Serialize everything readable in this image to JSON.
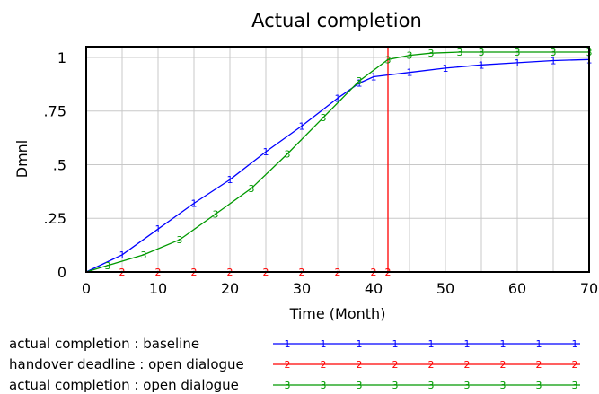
{
  "chart_data": {
    "type": "line",
    "title": "Actual completion",
    "xlabel": "Time (Month)",
    "ylabel": "Dmnl",
    "xlim": [
      0,
      70
    ],
    "ylim": [
      0,
      1.05
    ],
    "xticks": [
      0,
      10,
      20,
      30,
      40,
      50,
      60,
      70
    ],
    "xtick_labels": [
      "0",
      "10",
      "20",
      "30",
      "40",
      "50",
      "60",
      "70"
    ],
    "yticks": [
      0,
      0.25,
      0.5,
      0.75,
      1
    ],
    "ytick_labels": [
      "0",
      ".25",
      ".5",
      ".75",
      "1"
    ],
    "grid": true,
    "legend_position": "bottom-left",
    "series": [
      {
        "name": "actual completion : baseline",
        "marker": "1",
        "color": "#0000ff",
        "x": [
          0,
          5,
          10,
          15,
          20,
          25,
          30,
          35,
          38,
          40,
          45,
          50,
          55,
          60,
          65,
          70
        ],
        "y": [
          0,
          0.08,
          0.2,
          0.32,
          0.43,
          0.56,
          0.68,
          0.81,
          0.88,
          0.91,
          0.93,
          0.95,
          0.965,
          0.975,
          0.985,
          0.99
        ]
      },
      {
        "name": "handover deadline : open dialogue",
        "marker": "2",
        "color": "#ff0000",
        "x": [
          0,
          5,
          10,
          15,
          20,
          25,
          30,
          35,
          40,
          42
        ],
        "y": [
          0,
          0,
          0,
          0,
          0,
          0,
          0,
          0,
          0,
          0
        ],
        "vertical_line_x": 42
      },
      {
        "name": "actual completion : open dialogue",
        "marker": "3",
        "color": "#009900",
        "x": [
          0,
          3,
          8,
          13,
          18,
          23,
          28,
          33,
          38,
          42,
          45,
          48,
          52,
          55,
          60,
          65,
          70
        ],
        "y": [
          0,
          0.03,
          0.08,
          0.15,
          0.27,
          0.39,
          0.55,
          0.72,
          0.89,
          0.99,
          1.01,
          1.02,
          1.025,
          1.025,
          1.025,
          1.025,
          1.025
        ]
      }
    ]
  }
}
